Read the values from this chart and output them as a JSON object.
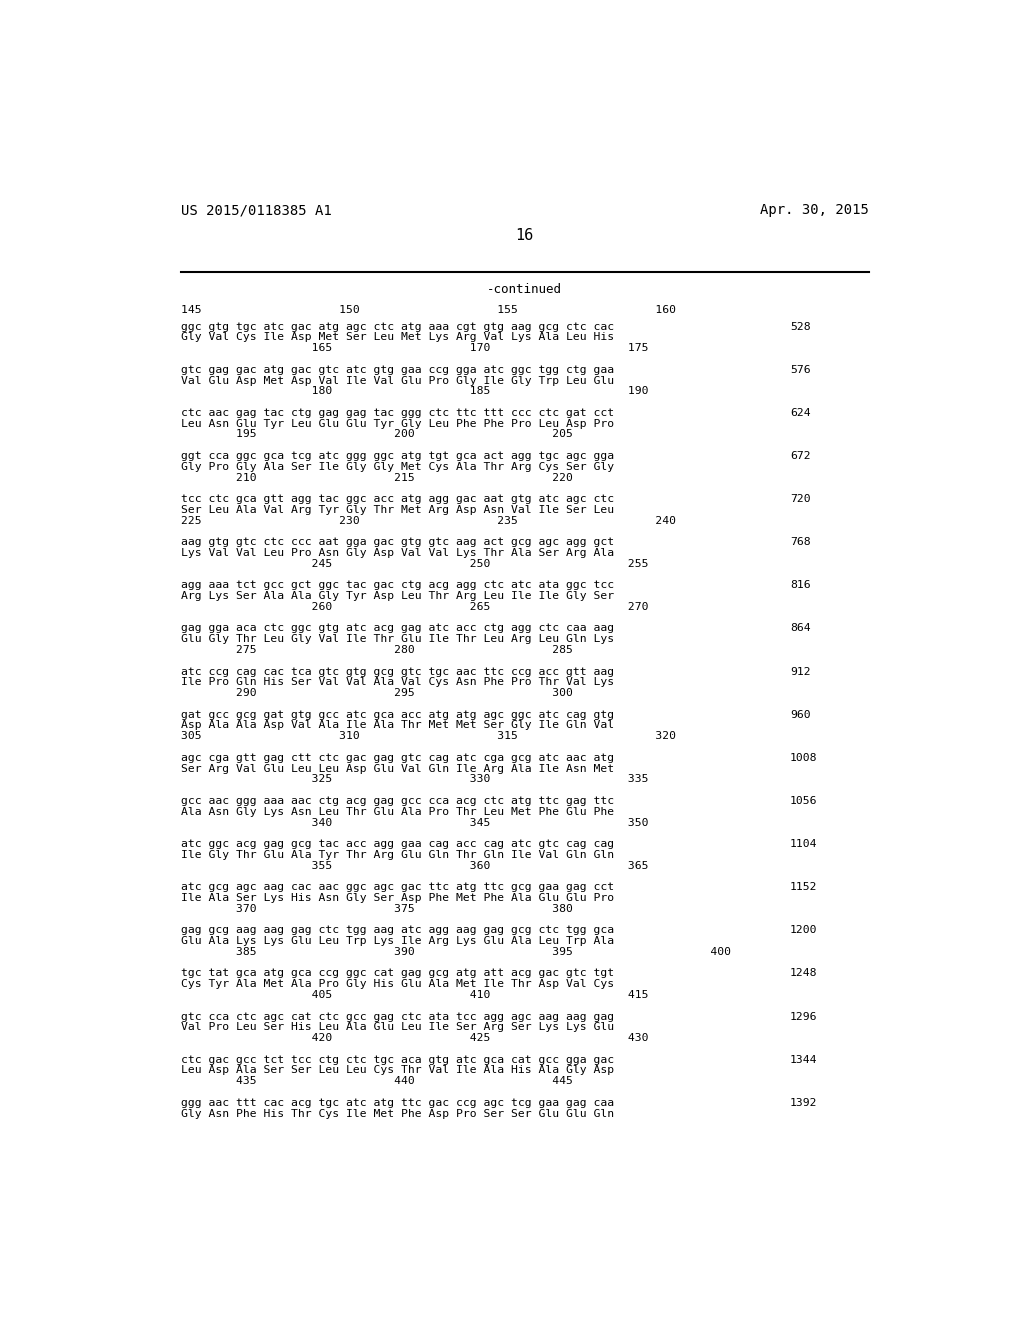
{
  "header_left": "US 2015/0118385 A1",
  "header_right": "Apr. 30, 2015",
  "page_number": "16",
  "continued_text": "-continued",
  "background_color": "#ffffff",
  "text_color": "#000000",
  "sequence_blocks": [
    {
      "ruler_top": "145                    150                    155                    160",
      "dna_line": "ggc gtg tgc atc gac atg agc ctc atg aaa cgt gtg aag gcg ctc cac",
      "aa_line": "Gly Val Cys Ile Asp Met Ser Leu Met Lys Arg Val Lys Ala Leu His",
      "sub_ruler": "                   165                    170                    175",
      "num": "528"
    },
    {
      "ruler_top": null,
      "dna_line": "gtc gag gac atg gac gtc atc gtg gaa ccg gga atc ggc tgg ctg gaa",
      "aa_line": "Val Glu Asp Met Asp Val Ile Val Glu Pro Gly Ile Gly Trp Leu Glu",
      "sub_ruler": "                   180                    185                    190",
      "num": "576"
    },
    {
      "ruler_top": null,
      "dna_line": "ctc aac gag tac ctg gag gag tac ggg ctc ttc ttt ccc ctc gat cct",
      "aa_line": "Leu Asn Glu Tyr Leu Glu Glu Tyr Gly Leu Phe Phe Pro Leu Asp Pro",
      "sub_ruler": "        195                    200                    205",
      "num": "624"
    },
    {
      "ruler_top": null,
      "dna_line": "ggt cca ggc gca tcg atc ggg ggc atg tgt gca act agg tgc agc gga",
      "aa_line": "Gly Pro Gly Ala Ser Ile Gly Gly Met Cys Ala Thr Arg Cys Ser Gly",
      "sub_ruler": "        210                    215                    220",
      "num": "672"
    },
    {
      "ruler_top": null,
      "dna_line": "tcc ctc gca gtt agg tac ggc acc atg agg gac aat gtg atc agc ctc",
      "aa_line": "Ser Leu Ala Val Arg Tyr Gly Thr Met Arg Asp Asn Val Ile Ser Leu",
      "sub_ruler": "225                    230                    235                    240",
      "num": "720"
    },
    {
      "ruler_top": null,
      "dna_line": "aag gtg gtc ctc ccc aat gga gac gtg gtc aag act gcg agc agg gct",
      "aa_line": "Lys Val Val Leu Pro Asn Gly Asp Val Val Lys Thr Ala Ser Arg Ala",
      "sub_ruler": "                   245                    250                    255",
      "num": "768"
    },
    {
      "ruler_top": null,
      "dna_line": "agg aaa tct gcc gct ggc tac gac ctg acg agg ctc atc ata ggc tcc",
      "aa_line": "Arg Lys Ser Ala Ala Gly Tyr Asp Leu Thr Arg Leu Ile Ile Gly Ser",
      "sub_ruler": "                   260                    265                    270",
      "num": "816"
    },
    {
      "ruler_top": null,
      "dna_line": "gag gga aca ctc ggc gtg atc acg gag atc acc ctg agg ctc caa aag",
      "aa_line": "Glu Gly Thr Leu Gly Val Ile Thr Glu Ile Thr Leu Arg Leu Gln Lys",
      "sub_ruler": "        275                    280                    285",
      "num": "864"
    },
    {
      "ruler_top": null,
      "dna_line": "atc ccg cag cac tca gtc gtg gcg gtc tgc aac ttc ccg acc gtt aag",
      "aa_line": "Ile Pro Gln His Ser Val Val Ala Val Cys Asn Phe Pro Thr Val Lys",
      "sub_ruler": "        290                    295                    300",
      "num": "912"
    },
    {
      "ruler_top": null,
      "dna_line": "gat gcc gcg gat gtg gcc atc gca acc atg atg agc ggc atc cag gtg",
      "aa_line": "Asp Ala Ala Asp Val Ala Ile Ala Thr Met Met Ser Gly Ile Gln Val",
      "sub_ruler": "305                    310                    315                    320",
      "num": "960"
    },
    {
      "ruler_top": null,
      "dna_line": "agc cga gtt gag ctt ctc gac gag gtc cag atc cga gcg atc aac atg",
      "aa_line": "Ser Arg Val Glu Leu Leu Asp Glu Val Gln Ile Arg Ala Ile Asn Met",
      "sub_ruler": "                   325                    330                    335",
      "num": "1008"
    },
    {
      "ruler_top": null,
      "dna_line": "gcc aac ggg aaa aac ctg acg gag gcc cca acg ctc atg ttc gag ttc",
      "aa_line": "Ala Asn Gly Lys Asn Leu Thr Glu Ala Pro Thr Leu Met Phe Glu Phe",
      "sub_ruler": "                   340                    345                    350",
      "num": "1056"
    },
    {
      "ruler_top": null,
      "dna_line": "atc ggc acg gag gcg tac acc agg gaa cag acc cag atc gtc cag cag",
      "aa_line": "Ile Gly Thr Glu Ala Tyr Thr Arg Glu Gln Thr Gln Ile Val Gln Gln",
      "sub_ruler": "                   355                    360                    365",
      "num": "1104"
    },
    {
      "ruler_top": null,
      "dna_line": "atc gcg agc aag cac aac ggc agc gac ttc atg ttc gcg gaa gag cct",
      "aa_line": "Ile Ala Ser Lys His Asn Gly Ser Asp Phe Met Phe Ala Glu Glu Pro",
      "sub_ruler": "        370                    375                    380",
      "num": "1152"
    },
    {
      "ruler_top": null,
      "dna_line": "gag gcg aag aag gag ctc tgg aag atc agg aag gag gcg ctc tgg gca",
      "aa_line": "Glu Ala Lys Lys Glu Leu Trp Lys Ile Arg Lys Glu Ala Leu Trp Ala",
      "sub_ruler": "        385                    390                    395                    400",
      "num": "1200"
    },
    {
      "ruler_top": null,
      "dna_line": "tgc tat gca atg gca ccg ggc cat gag gcg atg att acg gac gtc tgt",
      "aa_line": "Cys Tyr Ala Met Ala Pro Gly His Glu Ala Met Ile Thr Asp Val Cys",
      "sub_ruler": "                   405                    410                    415",
      "num": "1248"
    },
    {
      "ruler_top": null,
      "dna_line": "gtc cca ctc agc cat ctc gcc gag ctc ata tcc agg agc aag aag gag",
      "aa_line": "Val Pro Leu Ser His Leu Ala Glu Leu Ile Ser Arg Ser Lys Lys Glu",
      "sub_ruler": "                   420                    425                    430",
      "num": "1296"
    },
    {
      "ruler_top": null,
      "dna_line": "ctc gac gcc tct tcc ctg ctc tgc aca gtg atc gca cat gcc gga gac",
      "aa_line": "Leu Asp Ala Ser Ser Leu Leu Cys Thr Val Ile Ala His Ala Gly Asp",
      "sub_ruler": "        435                    440                    445",
      "num": "1344"
    },
    {
      "ruler_top": null,
      "dna_line": "ggg aac ttt cac acg tgc atc atg ttc gac ccg agc tcg gaa gag caa",
      "aa_line": "Gly Asn Phe His Thr Cys Ile Met Phe Asp Pro Ser Ser Glu Glu Gln",
      "sub_ruler": "",
      "num": "1392"
    }
  ]
}
